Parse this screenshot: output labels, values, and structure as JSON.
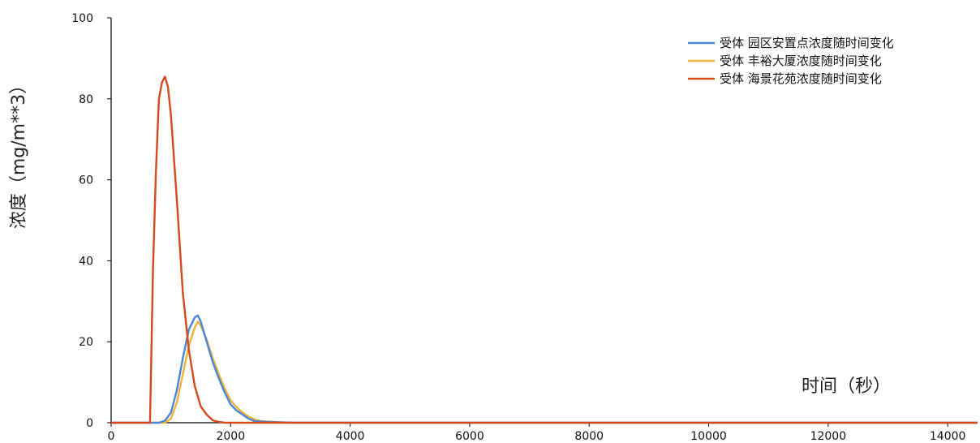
{
  "chart_data": {
    "type": "line",
    "title": "",
    "xlabel": "时间（秒）",
    "ylabel": "浓度（mg/m**3）",
    "xlim": [
      0,
      14500
    ],
    "ylim": [
      0,
      100
    ],
    "x_ticks": [
      0,
      2000,
      4000,
      6000,
      8000,
      10000,
      12000,
      14000
    ],
    "y_ticks": [
      0,
      20,
      40,
      60,
      80,
      100
    ],
    "x_tick_labels": [
      "0",
      "2000",
      "4000",
      "6000",
      "8000",
      "10000",
      "12000",
      "14000"
    ],
    "y_tick_labels": [
      "0",
      "20",
      "40",
      "60",
      "80",
      "100"
    ],
    "grid": false,
    "legend_position": "top-right",
    "series": [
      {
        "name": "受体 园区安置点浓度随时间变化",
        "color": "#4a86d8",
        "x": [
          0,
          800,
          900,
          1000,
          1100,
          1200,
          1300,
          1400,
          1450,
          1500,
          1600,
          1700,
          1800,
          1900,
          2000,
          2100,
          2200,
          2300,
          2400,
          2600,
          3000,
          4000,
          14500
        ],
        "y": [
          0,
          0,
          0.5,
          2.5,
          8,
          16,
          23,
          26,
          26.5,
          25,
          20,
          15,
          11,
          7.5,
          4.5,
          3,
          2,
          1,
          0.4,
          0.2,
          0,
          0,
          0
        ]
      },
      {
        "name": "受体 丰裕大厦浓度随时间变化",
        "color": "#f2b23a",
        "x": [
          0,
          900,
          1000,
          1100,
          1200,
          1300,
          1400,
          1450,
          1500,
          1600,
          1700,
          1800,
          1900,
          2000,
          2100,
          2200,
          2300,
          2400,
          2500,
          2700,
          3000,
          4000,
          14500
        ],
        "y": [
          0,
          0,
          1,
          5,
          12,
          19,
          23.5,
          25,
          24,
          20.5,
          16,
          12,
          8.5,
          5.5,
          3.8,
          2.5,
          1.5,
          0.8,
          0.4,
          0.2,
          0,
          0,
          0
        ]
      },
      {
        "name": "受体 海景花苑浓度随时间变化",
        "color": "#d44a1c",
        "x": [
          0,
          650,
          700,
          750,
          800,
          850,
          900,
          950,
          1000,
          1100,
          1200,
          1300,
          1400,
          1500,
          1600,
          1700,
          1800,
          1900,
          2000,
          14500
        ],
        "y": [
          0,
          0,
          38,
          62,
          80,
          84,
          85.5,
          83,
          76,
          55,
          32,
          18,
          9,
          4,
          2,
          0.6,
          0.2,
          0,
          0,
          0
        ]
      }
    ]
  }
}
